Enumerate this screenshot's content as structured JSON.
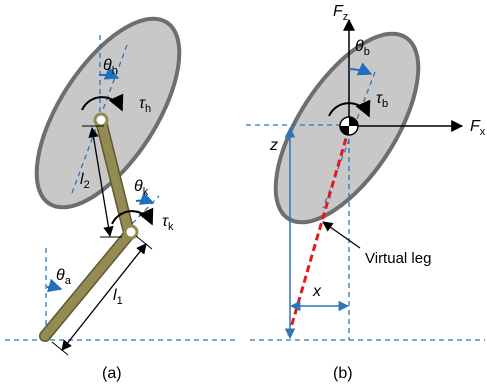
{
  "panels": [
    {
      "id": "a",
      "caption": "(a)"
    },
    {
      "id": "b",
      "caption": "(b)"
    }
  ],
  "labels": {
    "theta_h": {
      "sym": "θ",
      "sub": "h"
    },
    "tau_h": {
      "sym": "τ",
      "sub": "h"
    },
    "l2": {
      "sym": "l",
      "sub": "2"
    },
    "theta_k": {
      "sym": "θ",
      "sub": "k"
    },
    "tau_k": {
      "sym": "τ",
      "sub": "k"
    },
    "theta_a": {
      "sym": "θ",
      "sub": "a"
    },
    "l1": {
      "sym": "l",
      "sub": "1"
    },
    "Fz": {
      "sym": "F",
      "sub": "z"
    },
    "Fx": {
      "sym": "F",
      "sub": "x"
    },
    "theta_b": {
      "sym": "θ",
      "sub": "b"
    },
    "tau_b": {
      "sym": "τ",
      "sub": "b"
    },
    "z": {
      "sym": "z"
    },
    "x": {
      "sym": "x"
    },
    "virtual_leg": "Virtual leg"
  },
  "colors": {
    "body_fill": "#c8c8c8",
    "body_stroke": "#6e6e6e",
    "leg_fill": "#948a54",
    "leg_stroke": "#5e5830",
    "dashed_line": "#2e75b6",
    "angle_arrow": "#1f6fc0",
    "virtual_leg": "#e31a1c",
    "text": "#000000"
  }
}
